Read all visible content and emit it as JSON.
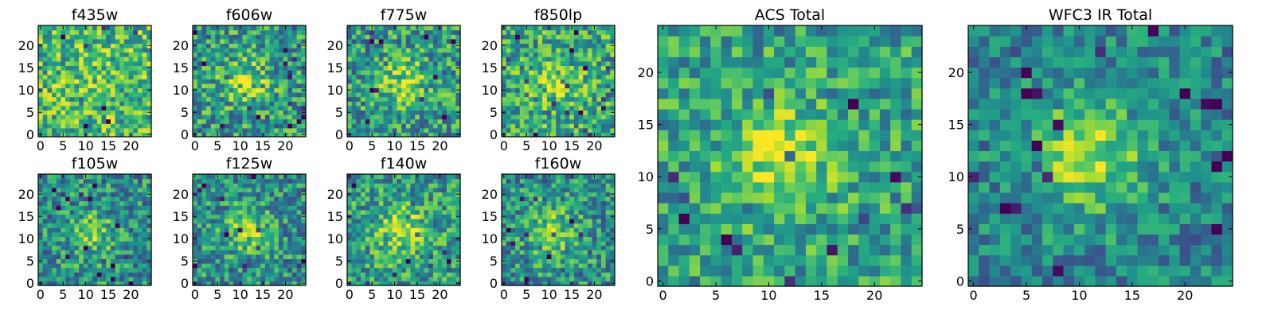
{
  "chart_data": {
    "type": "heatmap",
    "colormap": "viridis",
    "grid": false,
    "image_size": [
      25,
      25
    ],
    "panels": [
      {
        "title": "f435w",
        "xlim": [
          0,
          25
        ],
        "ylim": [
          0,
          25
        ],
        "xticks": [
          0,
          5,
          10,
          15,
          20
        ],
        "yticks": [
          0,
          5,
          10,
          15,
          20
        ],
        "pattern": {
          "peak": [
            12,
            12
          ],
          "sigma": 4,
          "strength": 0.05,
          "base": 0.68,
          "noise": 0.3,
          "seed": 11
        }
      },
      {
        "title": "f606w",
        "xlim": [
          0,
          25
        ],
        "ylim": [
          0,
          25
        ],
        "xticks": [
          0,
          5,
          10,
          15,
          20
        ],
        "yticks": [
          0,
          5,
          10,
          15,
          20
        ],
        "pattern": {
          "peak": [
            11,
            12
          ],
          "sigma": 3.5,
          "strength": 0.3,
          "base": 0.55,
          "noise": 0.3,
          "seed": 22
        }
      },
      {
        "title": "f775w",
        "xlim": [
          0,
          25
        ],
        "ylim": [
          0,
          25
        ],
        "xticks": [
          0,
          5,
          10,
          15,
          20
        ],
        "yticks": [
          0,
          5,
          10,
          15,
          20
        ],
        "pattern": {
          "peak": [
            12,
            12
          ],
          "sigma": 3.5,
          "strength": 0.3,
          "base": 0.55,
          "noise": 0.3,
          "seed": 33
        }
      },
      {
        "title": "f850lp",
        "xlim": [
          0,
          25
        ],
        "ylim": [
          0,
          25
        ],
        "xticks": [
          0,
          5,
          10,
          15,
          20
        ],
        "yticks": [
          0,
          5,
          10,
          15,
          20
        ],
        "pattern": {
          "peak": [
            12,
            12
          ],
          "sigma": 3.5,
          "strength": 0.25,
          "base": 0.6,
          "noise": 0.3,
          "seed": 44
        }
      },
      {
        "title": "f105w",
        "xlim": [
          0,
          25
        ],
        "ylim": [
          0,
          25
        ],
        "xticks": [
          0,
          5,
          10,
          15,
          20
        ],
        "yticks": [
          0,
          5,
          10,
          15,
          20
        ],
        "pattern": {
          "peak": [
            11,
            11
          ],
          "sigma": 3.5,
          "strength": 0.3,
          "base": 0.5,
          "noise": 0.28,
          "seed": 55
        }
      },
      {
        "title": "f125w",
        "xlim": [
          0,
          25
        ],
        "ylim": [
          0,
          25
        ],
        "xticks": [
          0,
          5,
          10,
          15,
          20
        ],
        "yticks": [
          0,
          5,
          10,
          15,
          20
        ],
        "pattern": {
          "peak": [
            12,
            12
          ],
          "sigma": 3.5,
          "strength": 0.3,
          "base": 0.5,
          "noise": 0.28,
          "seed": 66
        }
      },
      {
        "title": "f140w",
        "xlim": [
          0,
          25
        ],
        "ylim": [
          0,
          25
        ],
        "xticks": [
          0,
          5,
          10,
          15,
          20
        ],
        "yticks": [
          0,
          5,
          10,
          15,
          20
        ],
        "pattern": {
          "peak": [
            11,
            12
          ],
          "sigma": 4,
          "strength": 0.3,
          "base": 0.55,
          "noise": 0.28,
          "seed": 77
        }
      },
      {
        "title": "f160w",
        "xlim": [
          0,
          25
        ],
        "ylim": [
          0,
          25
        ],
        "xticks": [
          0,
          5,
          10,
          15,
          20
        ],
        "yticks": [
          0,
          5,
          10,
          15,
          20
        ],
        "pattern": {
          "peak": [
            11,
            12
          ],
          "sigma": 4,
          "strength": 0.3,
          "base": 0.5,
          "noise": 0.28,
          "seed": 88
        }
      },
      {
        "title": "ACS Total",
        "xlim": [
          0,
          25
        ],
        "ylim": [
          0,
          25
        ],
        "xticks": [
          0,
          5,
          10,
          15,
          20
        ],
        "yticks": [
          0,
          5,
          10,
          15,
          20
        ],
        "pattern": {
          "peak": [
            11,
            12
          ],
          "sigma": 3.5,
          "strength": 0.35,
          "base": 0.58,
          "noise": 0.25,
          "seed": 99
        }
      },
      {
        "title": "WFC3 IR Total",
        "xlim": [
          0,
          25
        ],
        "ylim": [
          0,
          25
        ],
        "xticks": [
          0,
          5,
          10,
          15,
          20
        ],
        "yticks": [
          0,
          5,
          10,
          15,
          20
        ],
        "pattern": {
          "peak": [
            11,
            12
          ],
          "sigma": 4,
          "strength": 0.4,
          "base": 0.45,
          "noise": 0.22,
          "seed": 123
        }
      }
    ]
  }
}
